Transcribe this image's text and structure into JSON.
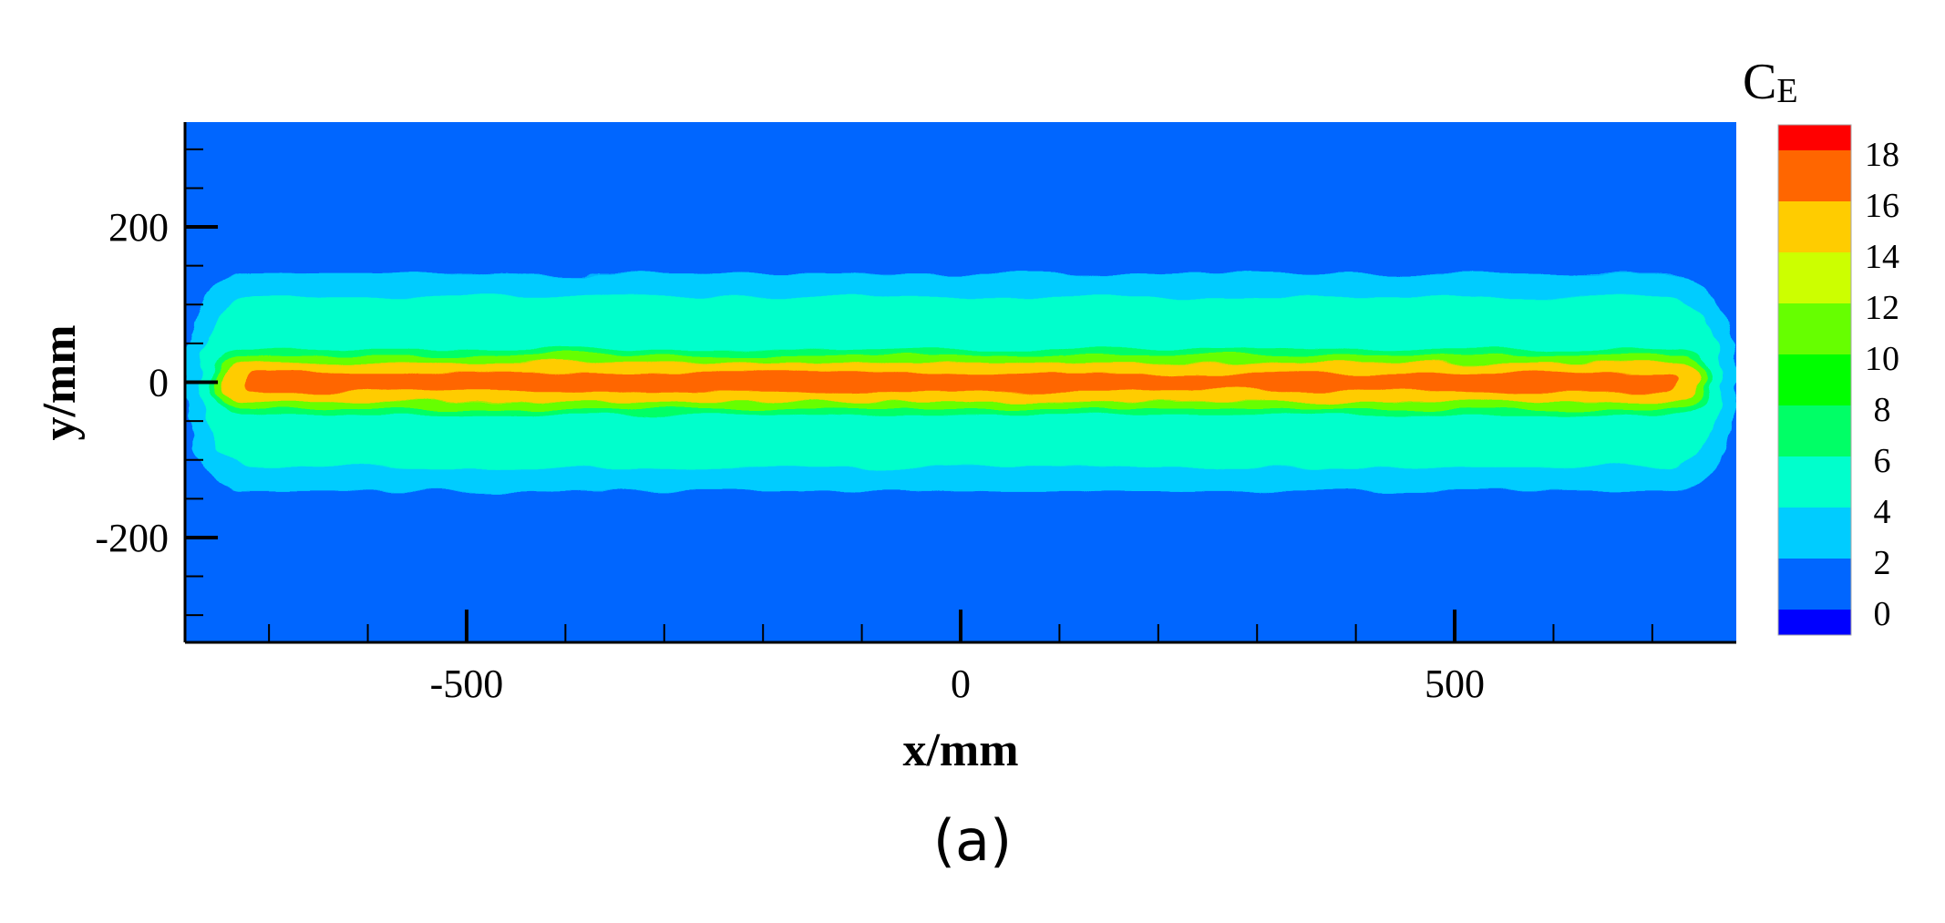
{
  "chart_data": {
    "type": "heatmap",
    "title": "",
    "xlabel": "x/mm",
    "ylabel": "y/mm",
    "xlim": [
      -785,
      785
    ],
    "ylim": [
      -335,
      335
    ],
    "x_major_ticks": [
      -500,
      0,
      500
    ],
    "x_minor_step": 100,
    "y_major_ticks": [
      -200,
      0,
      200
    ],
    "y_minor_step": 50,
    "x_tick_labels": [
      "-500",
      "0",
      "500"
    ],
    "y_tick_labels": [
      "-200",
      "0",
      "200"
    ],
    "grid": false,
    "colorbar": {
      "title_main": "C",
      "title_sub": "E",
      "placement": "right",
      "levels": [
        0,
        2,
        4,
        6,
        8,
        10,
        12,
        14,
        16,
        18
      ],
      "level_labels": [
        "0",
        "2",
        "4",
        "6",
        "8",
        "10",
        "12",
        "14",
        "16",
        "18"
      ],
      "colors": [
        "#0000ff",
        "#0066ff",
        "#00ccff",
        "#00ffcc",
        "#00ff66",
        "#00ff00",
        "#66ff00",
        "#ccff00",
        "#ffcc00",
        "#ff6600",
        "#ff0000"
      ]
    },
    "contour_bands": [
      {
        "level": 2,
        "color": "#00ccff",
        "half_length_mm": 785,
        "half_width_mm": 140
      },
      {
        "level": 4,
        "color": "#00ffcc",
        "half_length_mm": 770,
        "half_width_mm": 110
      },
      {
        "level": 8,
        "color": "#00ff66",
        "half_length_mm": 760,
        "half_width_mm": 42
      },
      {
        "level": 10,
        "color": "#66ff00",
        "half_length_mm": 755,
        "half_width_mm": 34
      },
      {
        "level": 14,
        "color": "#ffcc00",
        "half_length_mm": 748,
        "half_width_mm": 25
      },
      {
        "level": 16,
        "color": "#ff6600",
        "half_length_mm": 725,
        "half_width_mm": 12
      }
    ]
  },
  "figure": {
    "panel_label": "(a)"
  }
}
